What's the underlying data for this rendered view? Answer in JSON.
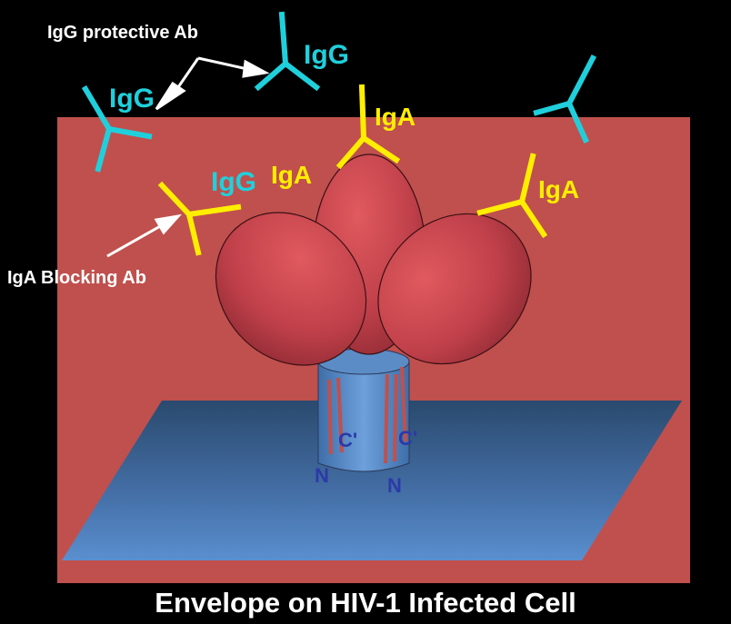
{
  "caption": "Envelope on HIV-1 Infected Cell",
  "annotations": {
    "igg_protective": "IgG protective  Ab",
    "iga_blocking": "IgA Blocking Ab"
  },
  "antibody_labels": {
    "igg_top": "IgG",
    "igg_left": "IgG",
    "igg_mid": "IgG",
    "iga_center": "IgA",
    "iga_left": "IgA",
    "iga_right": "IgA"
  },
  "terminus_labels": {
    "c_left": "C'",
    "c_right": "C'",
    "n_left": "N",
    "n_right": "N"
  },
  "colors": {
    "background": "#000000",
    "cell_wall": "#c0504d",
    "membrane": "#4f81bd",
    "envelope": "#c0404a",
    "igg": "#1fd0dc",
    "iga": "#ffee00",
    "terminus": "#2b3aa8"
  }
}
